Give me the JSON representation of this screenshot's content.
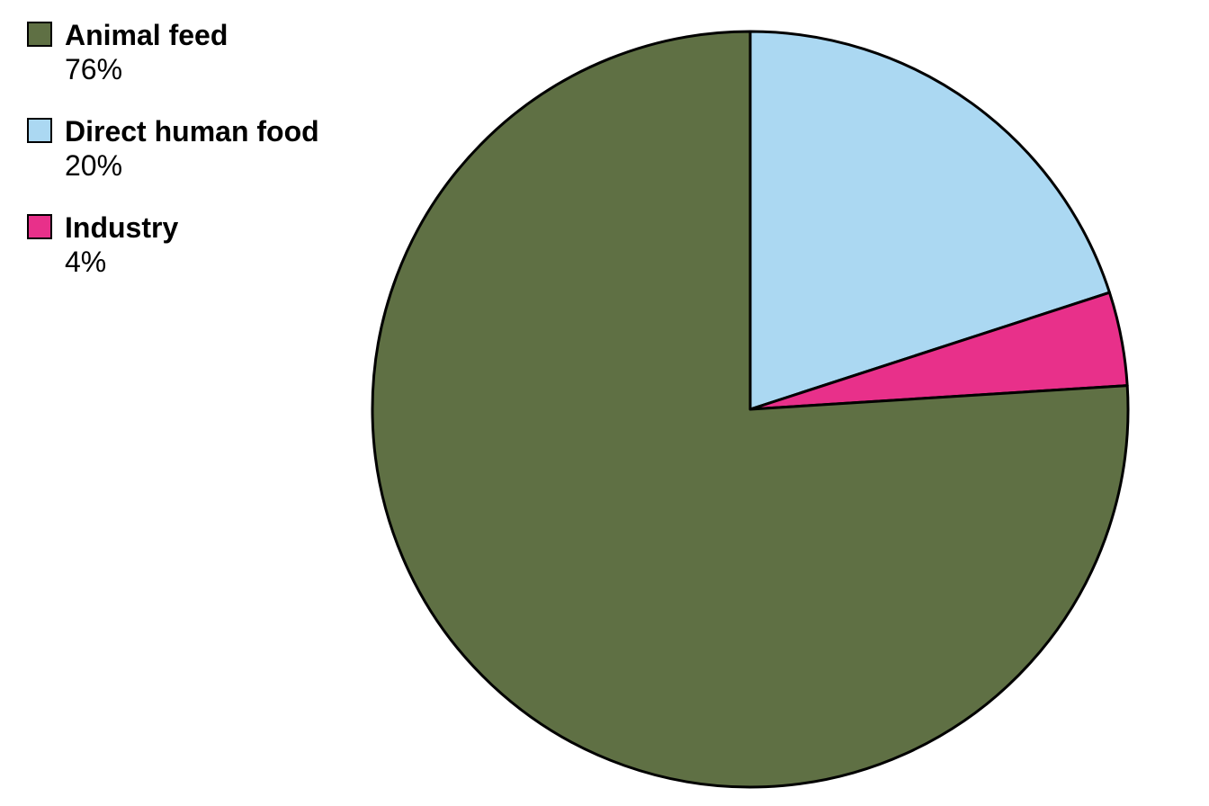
{
  "chart": {
    "type": "pie",
    "legend_position": "left",
    "background_color": "#ffffff",
    "stroke_color": "#000000",
    "stroke_width": 3,
    "radius": 420,
    "start_angle_deg": -90,
    "direction": "clockwise",
    "legend_swatch_size": 28,
    "legend_swatch_border": "#000000",
    "label_fontsize": 32,
    "label_fontweight": 700,
    "value_fontsize": 32,
    "value_fontweight": 400,
    "slices": [
      {
        "label": "Animal feed",
        "value": 76,
        "display": "76%",
        "color": "#5f7044"
      },
      {
        "label": "Direct human food",
        "value": 20,
        "display": "20%",
        "color": "#abd8f2"
      },
      {
        "label": "Industry",
        "value": 4,
        "display": "4%",
        "color": "#e8308a"
      }
    ]
  }
}
